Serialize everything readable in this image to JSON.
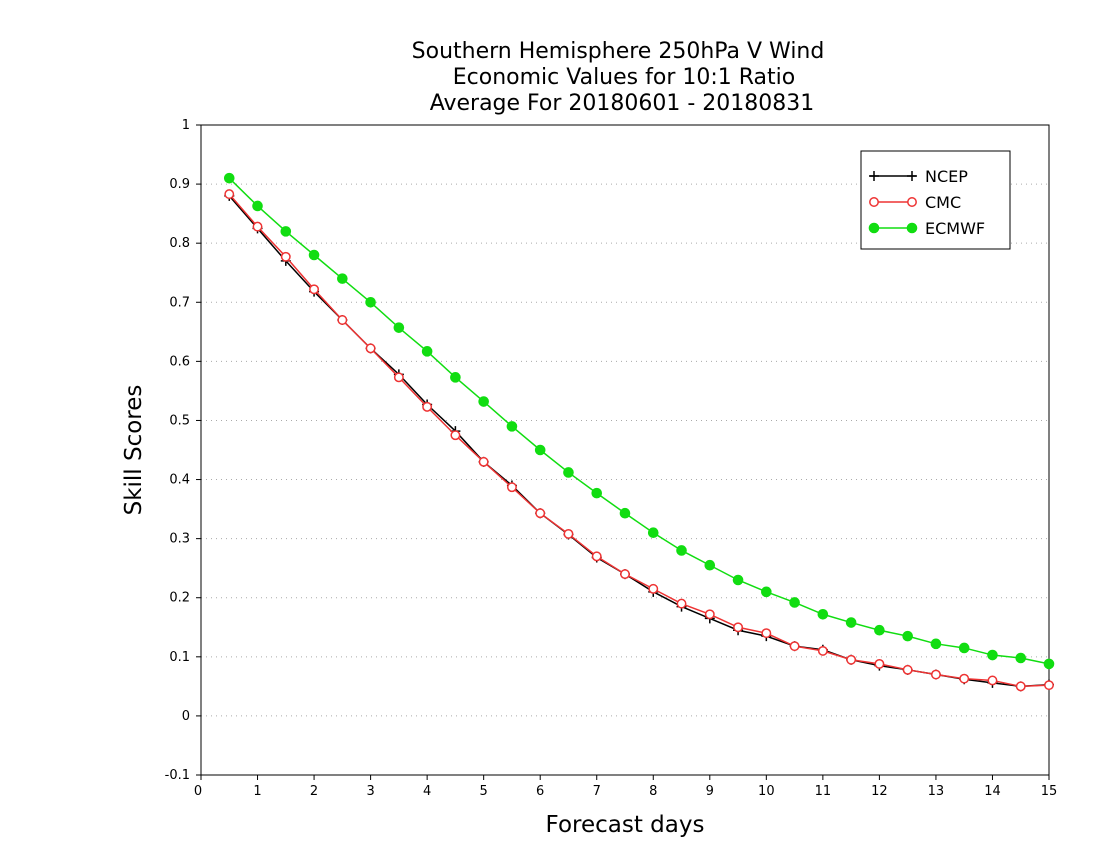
{
  "chart_data": {
    "type": "line",
    "title_lines": [
      "Southern Hemisphere 250hPa V Wind",
      "Economic Values for 10:1 Ratio",
      "Average For 20180601 - 20180831"
    ],
    "xlabel": "Forecast days",
    "ylabel": "Skill Scores",
    "xlim": [
      0,
      15
    ],
    "ylim": [
      -0.1,
      1
    ],
    "xticks": [
      "0",
      "1",
      "2",
      "3",
      "4",
      "5",
      "6",
      "7",
      "8",
      "9",
      "10",
      "11",
      "12",
      "13",
      "14",
      "15"
    ],
    "yticks": [
      "-0.1",
      "0",
      "0.1",
      "0.2",
      "0.3",
      "0.4",
      "0.5",
      "0.6",
      "0.7",
      "0.8",
      "0.9",
      "1"
    ],
    "grid": true,
    "legend_position": "top-right",
    "x": [
      0.5,
      1,
      1.5,
      2,
      2.5,
      3,
      3.5,
      4,
      4.5,
      5,
      5.5,
      6,
      6.5,
      7,
      7.5,
      8,
      8.5,
      9,
      9.5,
      10,
      10.5,
      11,
      11.5,
      12,
      12.5,
      13,
      13.5,
      14,
      14.5,
      15
    ],
    "series": [
      {
        "name": "NCEP",
        "color": "#000000",
        "marker": "plus",
        "values": [
          0.88,
          0.825,
          0.77,
          0.718,
          0.67,
          0.622,
          0.578,
          0.527,
          0.482,
          0.43,
          0.39,
          0.343,
          0.307,
          0.268,
          0.24,
          0.21,
          0.185,
          0.165,
          0.145,
          0.135,
          0.118,
          0.112,
          0.095,
          0.085,
          0.078,
          0.07,
          0.062,
          0.056,
          0.05,
          0.053
        ]
      },
      {
        "name": "CMC",
        "color": "#ee3333",
        "marker": "open-circle",
        "values": [
          0.883,
          0.828,
          0.777,
          0.722,
          0.67,
          0.622,
          0.573,
          0.523,
          0.475,
          0.43,
          0.387,
          0.343,
          0.308,
          0.27,
          0.24,
          0.215,
          0.19,
          0.172,
          0.15,
          0.14,
          0.118,
          0.11,
          0.095,
          0.088,
          0.078,
          0.07,
          0.063,
          0.06,
          0.05,
          0.052
        ]
      },
      {
        "name": "ECMWF",
        "color": "#11dd11",
        "marker": "filled-circle",
        "values": [
          0.91,
          0.863,
          0.82,
          0.78,
          0.74,
          0.7,
          0.657,
          0.617,
          0.573,
          0.532,
          0.49,
          0.45,
          0.412,
          0.377,
          0.343,
          0.31,
          0.28,
          0.255,
          0.23,
          0.21,
          0.192,
          0.172,
          0.158,
          0.145,
          0.135,
          0.122,
          0.115,
          0.103,
          0.098,
          0.088
        ]
      }
    ]
  }
}
